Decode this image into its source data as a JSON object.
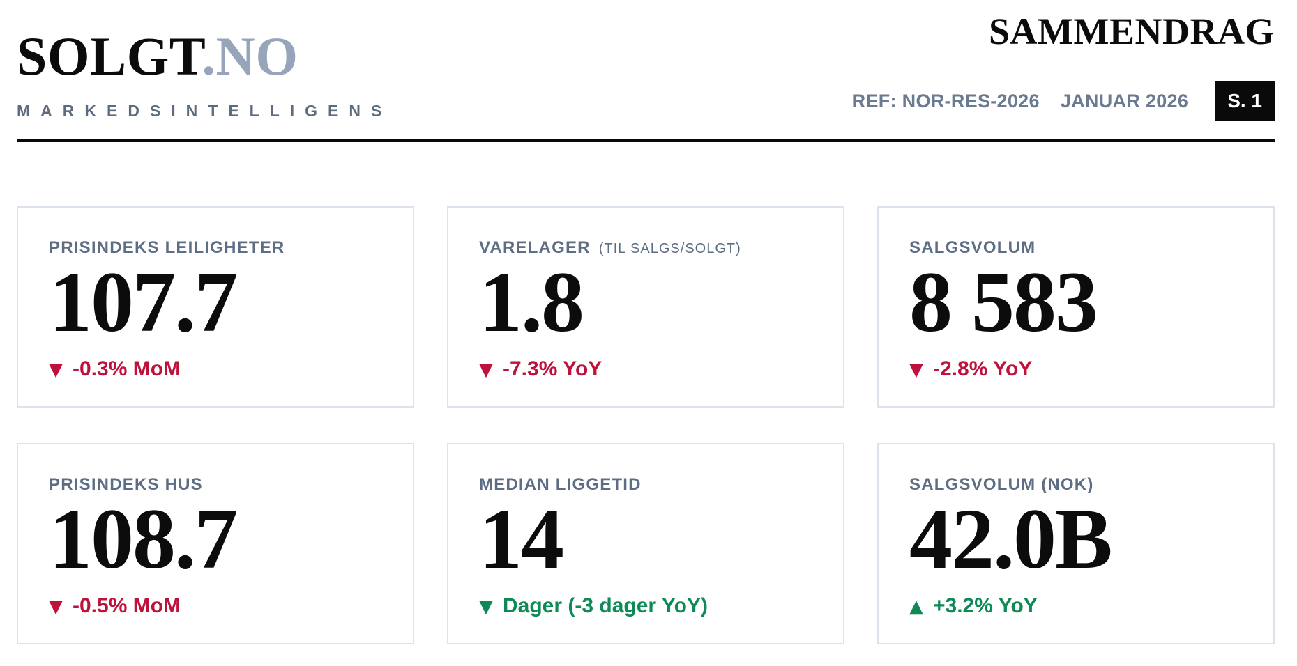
{
  "header": {
    "brand_primary": "SOLGT",
    "brand_suffix": ".NO",
    "tagline": "MARKEDSINTELLIGENS",
    "title": "SAMMENDRAG",
    "ref_label": "REF: NOR-RES-2026",
    "period_label": "JANUAR 2026",
    "page_badge": "S. 1"
  },
  "colors": {
    "negative": "#be123c",
    "positive": "#0e8a57",
    "brand-secondary": "#97a5bb",
    "label": "#5d6d83",
    "ink": "#0c0c0c",
    "card-border": "#dde3ed",
    "meta": "#6a7a90",
    "rule": "#0a0a0a"
  },
  "cards": [
    {
      "label": "PRISINDEKS LEILIGHETER",
      "sublabel": "",
      "value": "107.7",
      "delta": "-0.3% MoM",
      "direction": "down",
      "sentiment": "negative"
    },
    {
      "label": "VARELAGER",
      "sublabel": "(TIL SALGS/SOLGT)",
      "value": "1.8",
      "delta": "-7.3% YoY",
      "direction": "down",
      "sentiment": "negative"
    },
    {
      "label": "SALGSVOLUM",
      "sublabel": "",
      "value": "8 583",
      "delta": "-2.8% YoY",
      "direction": "down",
      "sentiment": "negative"
    },
    {
      "label": "PRISINDEKS HUS",
      "sublabel": "",
      "value": "108.7",
      "delta": "-0.5% MoM",
      "direction": "down",
      "sentiment": "negative"
    },
    {
      "label": "MEDIAN LIGGETID",
      "sublabel": "",
      "value": "14",
      "delta": "Dager (-3 dager YoY)",
      "direction": "down",
      "sentiment": "positive"
    },
    {
      "label": "SALGSVOLUM (NOK)",
      "sublabel": "",
      "value": "42.0B",
      "delta": "+3.2% YoY",
      "direction": "up",
      "sentiment": "positive"
    }
  ]
}
